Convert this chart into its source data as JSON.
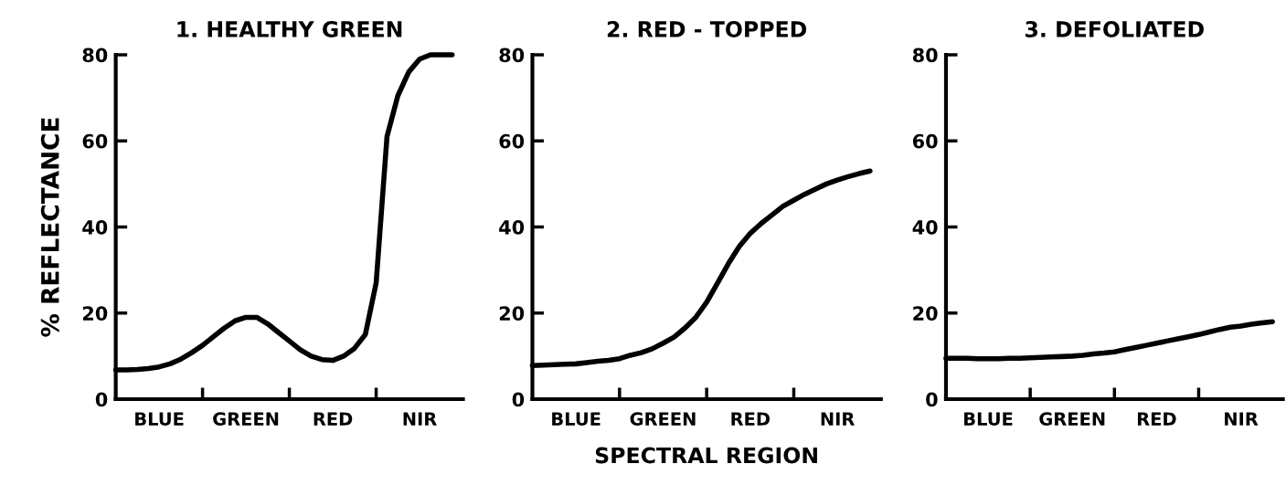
{
  "chart_data": [
    {
      "type": "line",
      "title": "1. HEALTHY GREEN",
      "ylabel": "% REFLECTANCE",
      "ylim": [
        0,
        80
      ],
      "yticks": [
        0,
        20,
        40,
        60,
        80
      ],
      "grid": false,
      "categories": [
        null,
        null,
        null,
        null,
        "BLUE",
        null,
        null,
        null,
        null,
        null,
        null,
        null,
        "GREEN",
        null,
        null,
        null,
        null,
        null,
        null,
        null,
        "RED",
        null,
        null,
        null,
        null,
        null,
        null,
        null,
        "NIR",
        null,
        null,
        null
      ],
      "series": [
        {
          "color": "#000000",
          "values": [
            6.8,
            6.8,
            6.9,
            7.1,
            7.5,
            8.2,
            9.3,
            10.8,
            12.5,
            14.5,
            16.5,
            18.2,
            19,
            19,
            17.5,
            15.5,
            13.5,
            11.5,
            10,
            9.2,
            9,
            10,
            11.8,
            15,
            27,
            61,
            70.5,
            76,
            79,
            80,
            80,
            80
          ]
        }
      ]
    },
    {
      "type": "line",
      "title": "2. RED - TOPPED",
      "xlabel": "SPECTRAL REGION",
      "ylim": [
        0,
        80
      ],
      "yticks": [
        0,
        20,
        40,
        60,
        80
      ],
      "grid": false,
      "categories": [
        null,
        null,
        null,
        null,
        "BLUE",
        null,
        null,
        null,
        null,
        null,
        null,
        null,
        "GREEN",
        null,
        null,
        null,
        null,
        null,
        null,
        null,
        "RED",
        null,
        null,
        null,
        null,
        null,
        null,
        null,
        "NIR",
        null,
        null,
        null
      ],
      "series": [
        {
          "color": "#000000",
          "values": [
            7.8,
            7.9,
            8,
            8.1,
            8.2,
            8.5,
            8.8,
            9,
            9.4,
            10.2,
            10.8,
            11.7,
            13,
            14.4,
            16.5,
            19,
            22.5,
            27,
            31.5,
            35.5,
            38.5,
            40.8,
            42.8,
            44.8,
            46.2,
            47.6,
            48.8,
            50,
            50.9,
            51.7,
            52.4,
            53
          ]
        }
      ]
    },
    {
      "type": "line",
      "title": "3. DEFOLIATED",
      "ylim": [
        0,
        80
      ],
      "yticks": [
        0,
        20,
        40,
        60,
        80
      ],
      "grid": false,
      "categories": [
        null,
        null,
        null,
        null,
        "BLUE",
        null,
        null,
        null,
        null,
        null,
        null,
        null,
        "GREEN",
        null,
        null,
        null,
        null,
        null,
        null,
        null,
        "RED",
        null,
        null,
        null,
        null,
        null,
        null,
        null,
        "NIR",
        null,
        null,
        null
      ],
      "series": [
        {
          "color": "#000000",
          "values": [
            9.5,
            9.5,
            9.5,
            9.4,
            9.4,
            9.4,
            9.5,
            9.5,
            9.6,
            9.7,
            9.8,
            9.9,
            10,
            10.2,
            10.5,
            10.7,
            11,
            11.5,
            12,
            12.5,
            13,
            13.5,
            14,
            14.5,
            15,
            15.6,
            16.2,
            16.7,
            17,
            17.4,
            17.7,
            18
          ]
        }
      ]
    }
  ]
}
